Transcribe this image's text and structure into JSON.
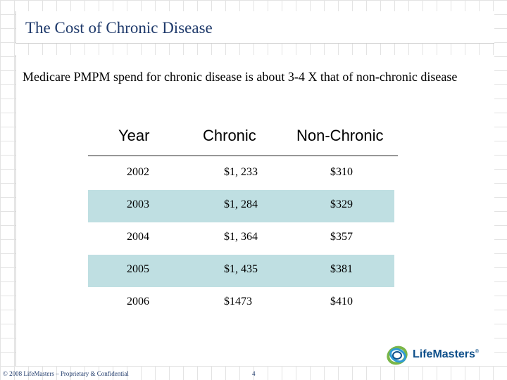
{
  "slide": {
    "title": "The Cost of Chronic Disease",
    "subtitle": "Medicare PMPM spend for chronic disease is about  3-4 X that of non-chronic disease"
  },
  "table": {
    "headers": {
      "year": "Year",
      "chronic": "Chronic",
      "non_chronic": "Non-Chronic"
    },
    "rows": [
      {
        "year": "2002",
        "chronic": "$1, 233",
        "non_chronic": "$310"
      },
      {
        "year": "2003",
        "chronic": "$1, 284",
        "non_chronic": "$329"
      },
      {
        "year": "2004",
        "chronic": "$1, 364",
        "non_chronic": "$357"
      },
      {
        "year": "2005",
        "chronic": "$1, 435",
        "non_chronic": "$381"
      },
      {
        "year": "2006",
        "chronic": "$1473",
        "non_chronic": "$410"
      }
    ],
    "shaded_color": "#bfdfe2"
  },
  "footer": {
    "copyright": "© 2008 LifeMasters – Proprietary & Confidential",
    "page_number": "4"
  },
  "logo": {
    "name": "LifeMasters",
    "mark": "®",
    "colors": [
      "#0e4f8a",
      "#7ab648",
      "#2e9bd6"
    ]
  }
}
